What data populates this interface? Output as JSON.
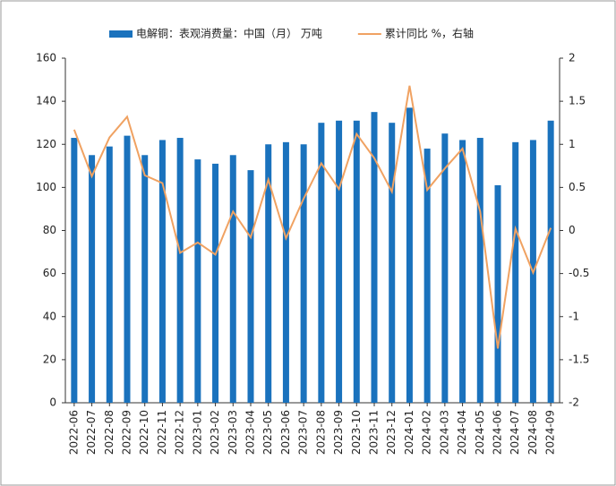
{
  "chart_data": {
    "type": "bar_line",
    "categories": [
      "2022-06",
      "2022-07",
      "2022-08",
      "2022-09",
      "2022-10",
      "2022-11",
      "2022-12",
      "2023-01",
      "2023-02",
      "2023-03",
      "2023-04",
      "2023-05",
      "2023-06",
      "2023-07",
      "2023-08",
      "2023-09",
      "2023-10",
      "2023-11",
      "2023-12",
      "2024-01",
      "2024-02",
      "2024-03",
      "2024-04",
      "2024-05",
      "2024-06",
      "2024-07",
      "2024-08",
      "2024-09"
    ],
    "series": [
      {
        "name": "电解铜：表观消费量：中国（月） 万吨",
        "type": "bar",
        "color": "#1a72bd",
        "values": [
          123,
          115,
          119,
          124,
          115,
          122,
          123,
          113,
          111,
          115,
          108,
          120,
          121,
          120,
          130,
          131,
          131,
          135,
          130,
          137,
          118,
          125,
          122,
          123,
          101,
          121,
          122,
          131
        ]
      },
      {
        "name": "累计同比 %，右轴",
        "type": "line",
        "axis": "y2",
        "color": "#f0a262",
        "values": [
          1.17,
          0.63,
          1.08,
          1.32,
          0.64,
          0.55,
          -0.26,
          -0.14,
          -0.28,
          0.22,
          -0.08,
          0.59,
          -0.09,
          0.37,
          0.78,
          0.48,
          1.12,
          0.84,
          0.45,
          1.68,
          0.47,
          0.72,
          0.95,
          0.22,
          -1.37,
          0.02,
          -0.49,
          0.03
        ]
      }
    ],
    "ylim": [
      0,
      160
    ],
    "yticks": [
      0,
      20,
      40,
      60,
      80,
      100,
      120,
      140,
      160
    ],
    "y2lim": [
      -2,
      2
    ],
    "y2ticks": [
      -2,
      -1.5,
      -1,
      -0.5,
      0,
      0.5,
      1,
      1.5,
      2
    ]
  }
}
